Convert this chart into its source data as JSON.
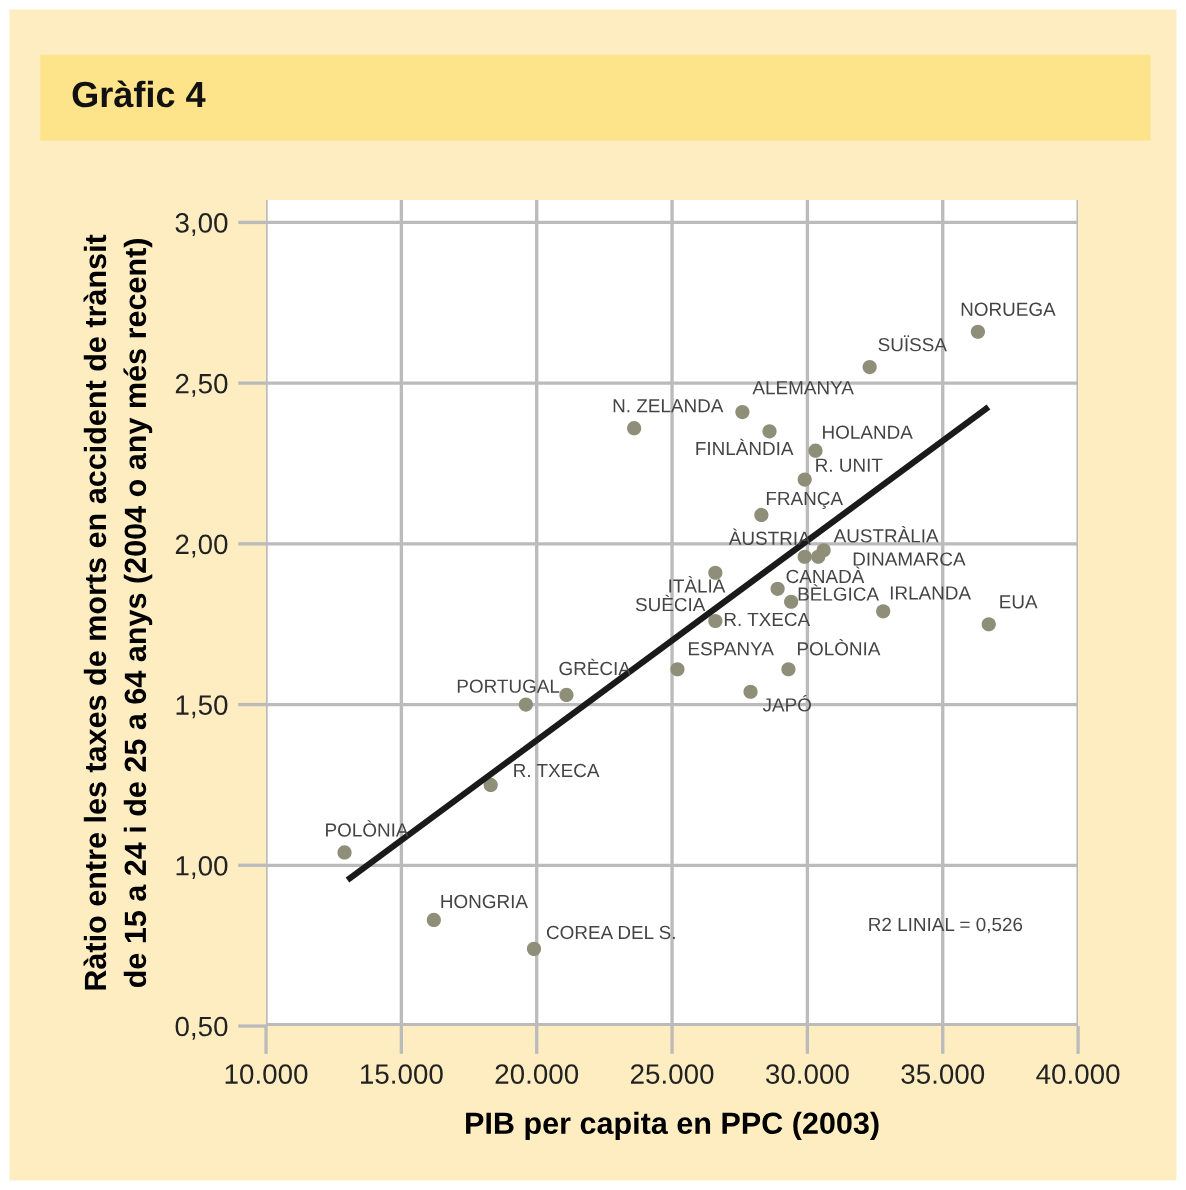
{
  "chart_data": {
    "type": "scatter",
    "title": "Gràfic 4",
    "xlabel": "PIB per capita en PPC (2003)",
    "ylabel": "Ràtio entre les taxes de morts en accident de trànsit\nde 15 a 24 i de 25 a 64 anys (2004 o any més recent)",
    "xlim": [
      10000,
      40000
    ],
    "ylim": [
      0.5,
      3.07
    ],
    "xticks": [
      {
        "value": 10000,
        "label": "10.000"
      },
      {
        "value": 15000,
        "label": "15.000"
      },
      {
        "value": 20000,
        "label": "20.000"
      },
      {
        "value": 25000,
        "label": "25.000"
      },
      {
        "value": 30000,
        "label": "30.000"
      },
      {
        "value": 35000,
        "label": "35.000"
      },
      {
        "value": 40000,
        "label": "40.000"
      }
    ],
    "yticks": [
      {
        "value": 0.5,
        "label": "0,50"
      },
      {
        "value": 1.0,
        "label": "1,00"
      },
      {
        "value": 1.5,
        "label": "1,50"
      },
      {
        "value": 2.0,
        "label": "2,00"
      },
      {
        "value": 2.5,
        "label": "2,50"
      },
      {
        "value": 3.0,
        "label": "3,00"
      }
    ],
    "grid": true,
    "legend": false,
    "marker": "circle",
    "series": [
      {
        "color": "#8f8e78",
        "x": [
          36300,
          32300,
          23600,
          27600,
          28600,
          30300,
          29900,
          28300,
          29900,
          30600,
          30400,
          26600,
          28900,
          29400,
          32800,
          36700,
          26600,
          25200,
          29300,
          27900,
          21100,
          19600,
          18300,
          12900,
          16200,
          19900
        ],
        "values": [
          2.66,
          2.55,
          2.36,
          2.41,
          2.35,
          2.29,
          2.2,
          2.09,
          1.96,
          1.98,
          1.96,
          1.91,
          1.86,
          1.82,
          1.79,
          1.75,
          1.76,
          1.61,
          1.61,
          1.54,
          1.53,
          1.5,
          1.25,
          1.04,
          0.83,
          0.74
        ]
      },
      {
        "type": "line",
        "marker": "none",
        "color": "#1a1a1a",
        "x": [
          13100,
          36600
        ],
        "values": [
          0.96,
          2.42
        ]
      }
    ],
    "annotations": [
      {
        "text": "NORUEGA",
        "x": 36300,
        "y": 2.66
      },
      {
        "text": "SUÏSSA",
        "x": 32300,
        "y": 2.55
      },
      {
        "text": "N. ZELANDA",
        "x": 23600,
        "y": 2.36
      },
      {
        "text": "ALEMANYA",
        "x": 27600,
        "y": 2.41
      },
      {
        "text": "FINLÀNDIA",
        "x": 28600,
        "y": 2.35
      },
      {
        "text": "HOLANDA",
        "x": 30300,
        "y": 2.29
      },
      {
        "text": "R. UNIT",
        "x": 29900,
        "y": 2.2
      },
      {
        "text": "FRANÇA",
        "x": 28300,
        "y": 2.09
      },
      {
        "text": "ÀUSTRIA",
        "x": 29900,
        "y": 1.96
      },
      {
        "text": "AUSTRÀLIA",
        "x": 30600,
        "y": 1.98
      },
      {
        "text": "DINAMARCA",
        "x": 30400,
        "y": 1.96
      },
      {
        "text": "ITÀLIA",
        "x": 26600,
        "y": 1.91
      },
      {
        "text": "CANADÀ",
        "x": 28900,
        "y": 1.86
      },
      {
        "text": "BÈLGICA",
        "x": 29400,
        "y": 1.82
      },
      {
        "text": "IRLANDA",
        "x": 32800,
        "y": 1.79
      },
      {
        "text": "EUA",
        "x": 36700,
        "y": 1.75
      },
      {
        "text": "SUÈCIA",
        "x": 26600,
        "y": 1.76
      },
      {
        "text": "R. TXECA",
        "x": 26600,
        "y": 1.76
      },
      {
        "text": "ESPANYA",
        "x": 25200,
        "y": 1.61
      },
      {
        "text": "POLÒNIA",
        "x": 29300,
        "y": 1.61
      },
      {
        "text": "JAPÓ",
        "x": 27900,
        "y": 1.54
      },
      {
        "text": "GRÈCIA",
        "x": 21100,
        "y": 1.53
      },
      {
        "text": "PORTUGAL",
        "x": 19600,
        "y": 1.5
      },
      {
        "text": "R. TXECA",
        "x": 18300,
        "y": 1.25
      },
      {
        "text": "POLÒNIA",
        "x": 12900,
        "y": 1.04
      },
      {
        "text": "HONGRIA",
        "x": 16200,
        "y": 0.83
      },
      {
        "text": "COREA DEL S.",
        "x": 19900,
        "y": 0.74
      },
      "R2 LINIAL = 0,526"
    ]
  }
}
